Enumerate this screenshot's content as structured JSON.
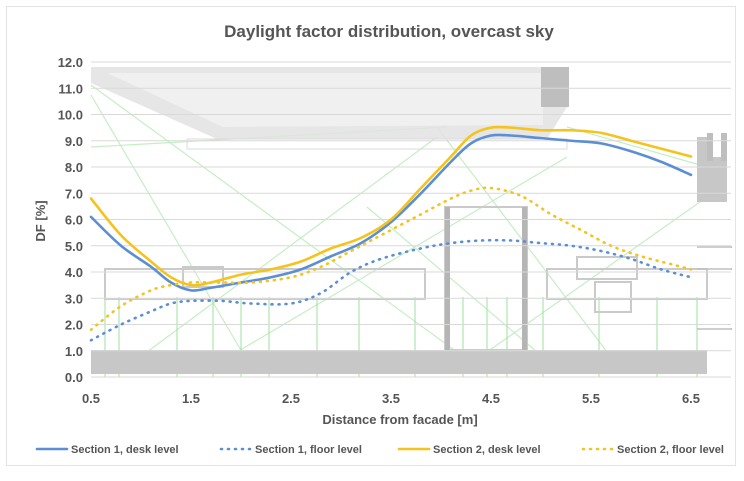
{
  "chart_data": {
    "type": "line",
    "title": "Daylight factor distribution, overcast sky",
    "xlabel": "Distance from facade [m]",
    "ylabel": "DF [%]",
    "xlim": [
      0.5,
      6.9
    ],
    "ylim": [
      0,
      12
    ],
    "x_ticks": [
      "0.5",
      "1.5",
      "2.5",
      "3.5",
      "4.5",
      "5.5",
      "6.5"
    ],
    "y_ticks": [
      "0.0",
      "1.0",
      "2.0",
      "3.0",
      "4.0",
      "5.0",
      "6.0",
      "7.0",
      "8.0",
      "9.0",
      "10.0",
      "11.0",
      "12.0"
    ],
    "grid": true,
    "legend_position": "bottom",
    "background": "section drawing (ceiling, furniture and rays) behind the plot",
    "series": [
      {
        "name": "Section 1, desk level",
        "color": "#5b8ed4",
        "dash": "solid",
        "x": [
          0.5,
          0.8,
          1.1,
          1.3,
          1.5,
          1.7,
          2.0,
          2.3,
          2.6,
          2.9,
          3.2,
          3.5,
          3.8,
          4.1,
          4.3,
          4.5,
          4.7,
          5.0,
          5.3,
          5.6,
          5.9,
          6.2,
          6.5
        ],
        "values": [
          6.1,
          5.0,
          4.2,
          3.6,
          3.3,
          3.4,
          3.6,
          3.8,
          4.1,
          4.6,
          5.1,
          5.9,
          7.0,
          8.2,
          8.9,
          9.2,
          9.2,
          9.1,
          9.0,
          8.9,
          8.6,
          8.2,
          7.7
        ]
      },
      {
        "name": "Section 1, floor level",
        "color": "#5b8ed4",
        "dash": "dotted",
        "x": [
          0.5,
          0.8,
          1.1,
          1.3,
          1.5,
          1.8,
          2.1,
          2.5,
          2.8,
          3.1,
          3.4,
          3.8,
          4.1,
          4.4,
          4.7,
          5.0,
          5.3,
          5.6,
          5.9,
          6.2,
          6.5
        ],
        "values": [
          1.4,
          2.0,
          2.5,
          2.8,
          2.9,
          2.9,
          2.8,
          2.8,
          3.2,
          4.0,
          4.5,
          4.9,
          5.1,
          5.2,
          5.2,
          5.1,
          5.0,
          4.8,
          4.5,
          4.1,
          3.8
        ]
      },
      {
        "name": "Section 2, desk level",
        "color": "#f5c31c",
        "dash": "solid",
        "x": [
          0.5,
          0.8,
          1.1,
          1.3,
          1.5,
          1.7,
          2.0,
          2.3,
          2.6,
          2.9,
          3.2,
          3.5,
          3.8,
          4.1,
          4.3,
          4.5,
          4.7,
          5.0,
          5.3,
          5.6,
          5.9,
          6.2,
          6.5
        ],
        "values": [
          6.8,
          5.4,
          4.4,
          3.8,
          3.5,
          3.6,
          3.9,
          4.1,
          4.4,
          4.9,
          5.3,
          6.0,
          7.2,
          8.4,
          9.2,
          9.5,
          9.5,
          9.4,
          9.4,
          9.3,
          9.0,
          8.7,
          8.4
        ]
      },
      {
        "name": "Section 2, floor level",
        "color": "#f5c31c",
        "dash": "dotted",
        "x": [
          0.5,
          0.8,
          1.1,
          1.3,
          1.5,
          1.8,
          2.1,
          2.5,
          2.8,
          3.1,
          3.4,
          3.8,
          4.1,
          4.3,
          4.5,
          4.8,
          5.1,
          5.4,
          5.7,
          6.0,
          6.3,
          6.5
        ],
        "values": [
          1.8,
          2.7,
          3.3,
          3.5,
          3.6,
          3.6,
          3.6,
          3.8,
          4.2,
          4.8,
          5.4,
          6.2,
          6.8,
          7.1,
          7.2,
          6.9,
          6.2,
          5.6,
          5.0,
          4.6,
          4.3,
          4.1
        ]
      }
    ]
  }
}
